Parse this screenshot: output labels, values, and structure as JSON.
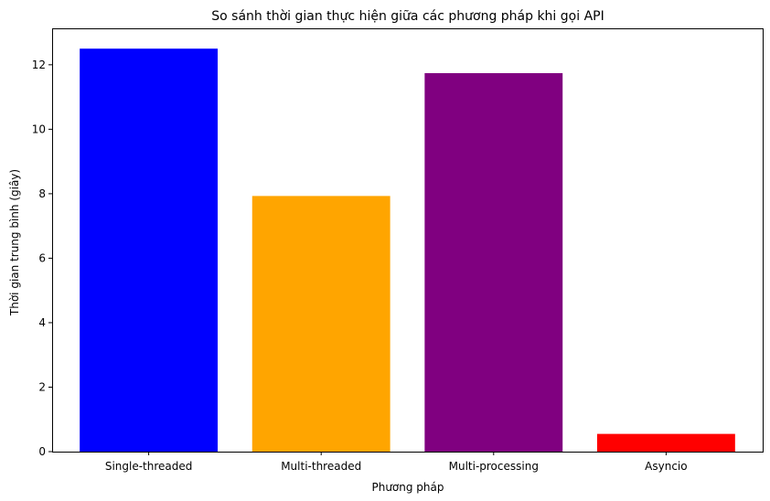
{
  "chart_data": {
    "type": "bar",
    "title": "So sánh thời gian thực hiện giữa các phương pháp khi gọi API",
    "xlabel": "Phương pháp",
    "ylabel": "Thời gian trung bình (giây)",
    "categories": [
      "Single-threaded",
      "Multi-threaded",
      "Multi-processing",
      "Asyncio"
    ],
    "values": [
      12.5,
      7.93,
      11.74,
      0.55
    ],
    "colors": [
      "#0000ff",
      "#ffa500",
      "#800080",
      "#ff0000"
    ],
    "ylim": [
      0,
      13.13
    ],
    "yticks": [
      0,
      2,
      4,
      6,
      8,
      10,
      12
    ],
    "grid": false,
    "legend": "none"
  }
}
